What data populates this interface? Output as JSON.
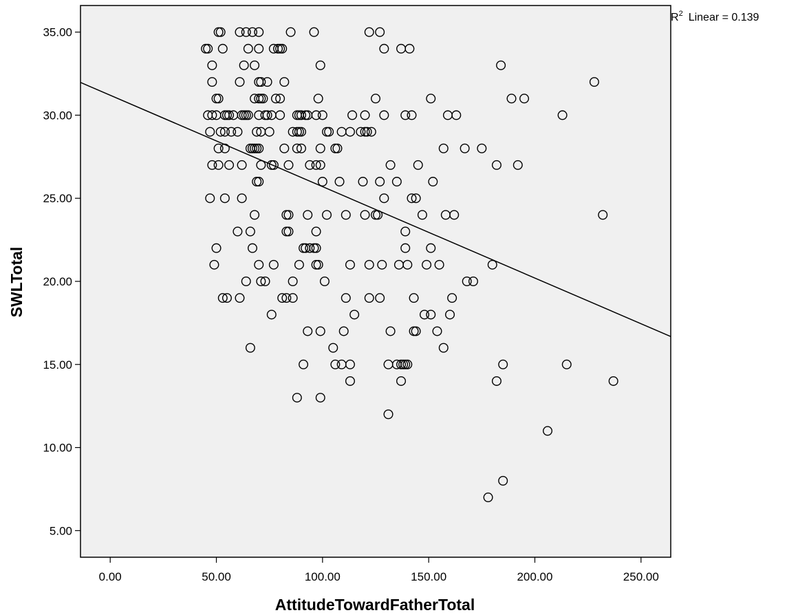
{
  "chart_data": {
    "type": "scatter",
    "title": "",
    "xlabel": "AttitudeTowardFatherTotal",
    "ylabel": "SWLTotal",
    "xlim": [
      -14,
      264
    ],
    "ylim": [
      3.4,
      36.6
    ],
    "x_ticks": [
      "0.00",
      "50.00",
      "100.00",
      "150.00",
      "200.00",
      "250.00"
    ],
    "y_ticks": [
      "5.00",
      "10.00",
      "15.00",
      "20.00",
      "25.00",
      "30.00",
      "35.00"
    ],
    "x_tick_values": [
      0,
      50,
      100,
      150,
      200,
      250
    ],
    "y_tick_values": [
      5,
      10,
      15,
      20,
      25,
      30,
      35
    ],
    "grid": false,
    "background": "#f0f0f0",
    "marker": "open-circle",
    "fit_line": {
      "type": "linear",
      "label_prefix": "R",
      "label_sup": "2",
      "label_suffix": "Linear = 0.139",
      "intercept": 31.2,
      "slope": -0.055
    },
    "points": [
      [
        51,
        35
      ],
      [
        52,
        35
      ],
      [
        61,
        35
      ],
      [
        64,
        35
      ],
      [
        67,
        35
      ],
      [
        70,
        35
      ],
      [
        85,
        35
      ],
      [
        96,
        35
      ],
      [
        122,
        35
      ],
      [
        127,
        35
      ],
      [
        45,
        34
      ],
      [
        46,
        34
      ],
      [
        53,
        34
      ],
      [
        65,
        34
      ],
      [
        70,
        34
      ],
      [
        77,
        34
      ],
      [
        79,
        34
      ],
      [
        80,
        34
      ],
      [
        81,
        34
      ],
      [
        129,
        34
      ],
      [
        137,
        34
      ],
      [
        141,
        34
      ],
      [
        48,
        33
      ],
      [
        63,
        33
      ],
      [
        68,
        33
      ],
      [
        99,
        33
      ],
      [
        184,
        33
      ],
      [
        48,
        32
      ],
      [
        61,
        32
      ],
      [
        70,
        32
      ],
      [
        71,
        32
      ],
      [
        74,
        32
      ],
      [
        82,
        32
      ],
      [
        228,
        32
      ],
      [
        50,
        31
      ],
      [
        51,
        31
      ],
      [
        68,
        31
      ],
      [
        70,
        31
      ],
      [
        71,
        31
      ],
      [
        72,
        31
      ],
      [
        78,
        31
      ],
      [
        80,
        31
      ],
      [
        98,
        31
      ],
      [
        125,
        31
      ],
      [
        151,
        31
      ],
      [
        189,
        31
      ],
      [
        195,
        31
      ],
      [
        46,
        30
      ],
      [
        48,
        30
      ],
      [
        50,
        30
      ],
      [
        54,
        30
      ],
      [
        55,
        30
      ],
      [
        56,
        30
      ],
      [
        58,
        30
      ],
      [
        62,
        30
      ],
      [
        63,
        30
      ],
      [
        64,
        30
      ],
      [
        65,
        30
      ],
      [
        70,
        30
      ],
      [
        73,
        30
      ],
      [
        74,
        30
      ],
      [
        76,
        30
      ],
      [
        80,
        30
      ],
      [
        88,
        30
      ],
      [
        89,
        30
      ],
      [
        90,
        30
      ],
      [
        92,
        30
      ],
      [
        93,
        30
      ],
      [
        97,
        30
      ],
      [
        100,
        30
      ],
      [
        114,
        30
      ],
      [
        120,
        30
      ],
      [
        129,
        30
      ],
      [
        139,
        30
      ],
      [
        142,
        30
      ],
      [
        159,
        30
      ],
      [
        163,
        30
      ],
      [
        213,
        30
      ],
      [
        47,
        29
      ],
      [
        52,
        29
      ],
      [
        54,
        29
      ],
      [
        57,
        29
      ],
      [
        60,
        29
      ],
      [
        69,
        29
      ],
      [
        71,
        29
      ],
      [
        75,
        29
      ],
      [
        86,
        29
      ],
      [
        88,
        29
      ],
      [
        89,
        29
      ],
      [
        90,
        29
      ],
      [
        102,
        29
      ],
      [
        103,
        29
      ],
      [
        109,
        29
      ],
      [
        113,
        29
      ],
      [
        118,
        29
      ],
      [
        120,
        29
      ],
      [
        121,
        29
      ],
      [
        123,
        29
      ],
      [
        51,
        28
      ],
      [
        54,
        28
      ],
      [
        66,
        28
      ],
      [
        67,
        28
      ],
      [
        68,
        28
      ],
      [
        69,
        28
      ],
      [
        70,
        28
      ],
      [
        82,
        28
      ],
      [
        88,
        28
      ],
      [
        90,
        28
      ],
      [
        99,
        28
      ],
      [
        106,
        28
      ],
      [
        107,
        28
      ],
      [
        157,
        28
      ],
      [
        167,
        28
      ],
      [
        175,
        28
      ],
      [
        48,
        27
      ],
      [
        51,
        27
      ],
      [
        56,
        27
      ],
      [
        62,
        27
      ],
      [
        71,
        27
      ],
      [
        76,
        27
      ],
      [
        77,
        27
      ],
      [
        84,
        27
      ],
      [
        94,
        27
      ],
      [
        97,
        27
      ],
      [
        99,
        27
      ],
      [
        132,
        27
      ],
      [
        145,
        27
      ],
      [
        182,
        27
      ],
      [
        192,
        27
      ],
      [
        69,
        26
      ],
      [
        70,
        26
      ],
      [
        100,
        26
      ],
      [
        108,
        26
      ],
      [
        119,
        26
      ],
      [
        127,
        26
      ],
      [
        135,
        26
      ],
      [
        152,
        26
      ],
      [
        47,
        25
      ],
      [
        54,
        25
      ],
      [
        62,
        25
      ],
      [
        129,
        25
      ],
      [
        142,
        25
      ],
      [
        144,
        25
      ],
      [
        68,
        24
      ],
      [
        83,
        24
      ],
      [
        84,
        24
      ],
      [
        93,
        24
      ],
      [
        102,
        24
      ],
      [
        111,
        24
      ],
      [
        120,
        24
      ],
      [
        125,
        24
      ],
      [
        126,
        24
      ],
      [
        147,
        24
      ],
      [
        158,
        24
      ],
      [
        162,
        24
      ],
      [
        232,
        24
      ],
      [
        60,
        23
      ],
      [
        66,
        23
      ],
      [
        83,
        23
      ],
      [
        84,
        23
      ],
      [
        97,
        23
      ],
      [
        139,
        23
      ],
      [
        50,
        22
      ],
      [
        67,
        22
      ],
      [
        91,
        22
      ],
      [
        92,
        22
      ],
      [
        94,
        22
      ],
      [
        96,
        22
      ],
      [
        97,
        22
      ],
      [
        139,
        22
      ],
      [
        151,
        22
      ],
      [
        49,
        21
      ],
      [
        70,
        21
      ],
      [
        77,
        21
      ],
      [
        89,
        21
      ],
      [
        97,
        21
      ],
      [
        98,
        21
      ],
      [
        113,
        21
      ],
      [
        122,
        21
      ],
      [
        128,
        21
      ],
      [
        136,
        21
      ],
      [
        140,
        21
      ],
      [
        149,
        21
      ],
      [
        155,
        21
      ],
      [
        180,
        21
      ],
      [
        64,
        20
      ],
      [
        71,
        20
      ],
      [
        73,
        20
      ],
      [
        86,
        20
      ],
      [
        101,
        20
      ],
      [
        168,
        20
      ],
      [
        171,
        20
      ],
      [
        53,
        19
      ],
      [
        55,
        19
      ],
      [
        61,
        19
      ],
      [
        81,
        19
      ],
      [
        83,
        19
      ],
      [
        86,
        19
      ],
      [
        111,
        19
      ],
      [
        122,
        19
      ],
      [
        127,
        19
      ],
      [
        143,
        19
      ],
      [
        161,
        19
      ],
      [
        76,
        18
      ],
      [
        115,
        18
      ],
      [
        148,
        18
      ],
      [
        151,
        18
      ],
      [
        160,
        18
      ],
      [
        93,
        17
      ],
      [
        99,
        17
      ],
      [
        110,
        17
      ],
      [
        132,
        17
      ],
      [
        143,
        17
      ],
      [
        144,
        17
      ],
      [
        154,
        17
      ],
      [
        66,
        16
      ],
      [
        105,
        16
      ],
      [
        157,
        16
      ],
      [
        91,
        15
      ],
      [
        106,
        15
      ],
      [
        109,
        15
      ],
      [
        113,
        15
      ],
      [
        131,
        15
      ],
      [
        135,
        15
      ],
      [
        137,
        15
      ],
      [
        138,
        15
      ],
      [
        139,
        15
      ],
      [
        140,
        15
      ],
      [
        185,
        15
      ],
      [
        215,
        15
      ],
      [
        113,
        14
      ],
      [
        137,
        14
      ],
      [
        182,
        14
      ],
      [
        237,
        14
      ],
      [
        88,
        13
      ],
      [
        99,
        13
      ],
      [
        131,
        12
      ],
      [
        206,
        11
      ],
      [
        185,
        8
      ],
      [
        178,
        7
      ]
    ]
  }
}
